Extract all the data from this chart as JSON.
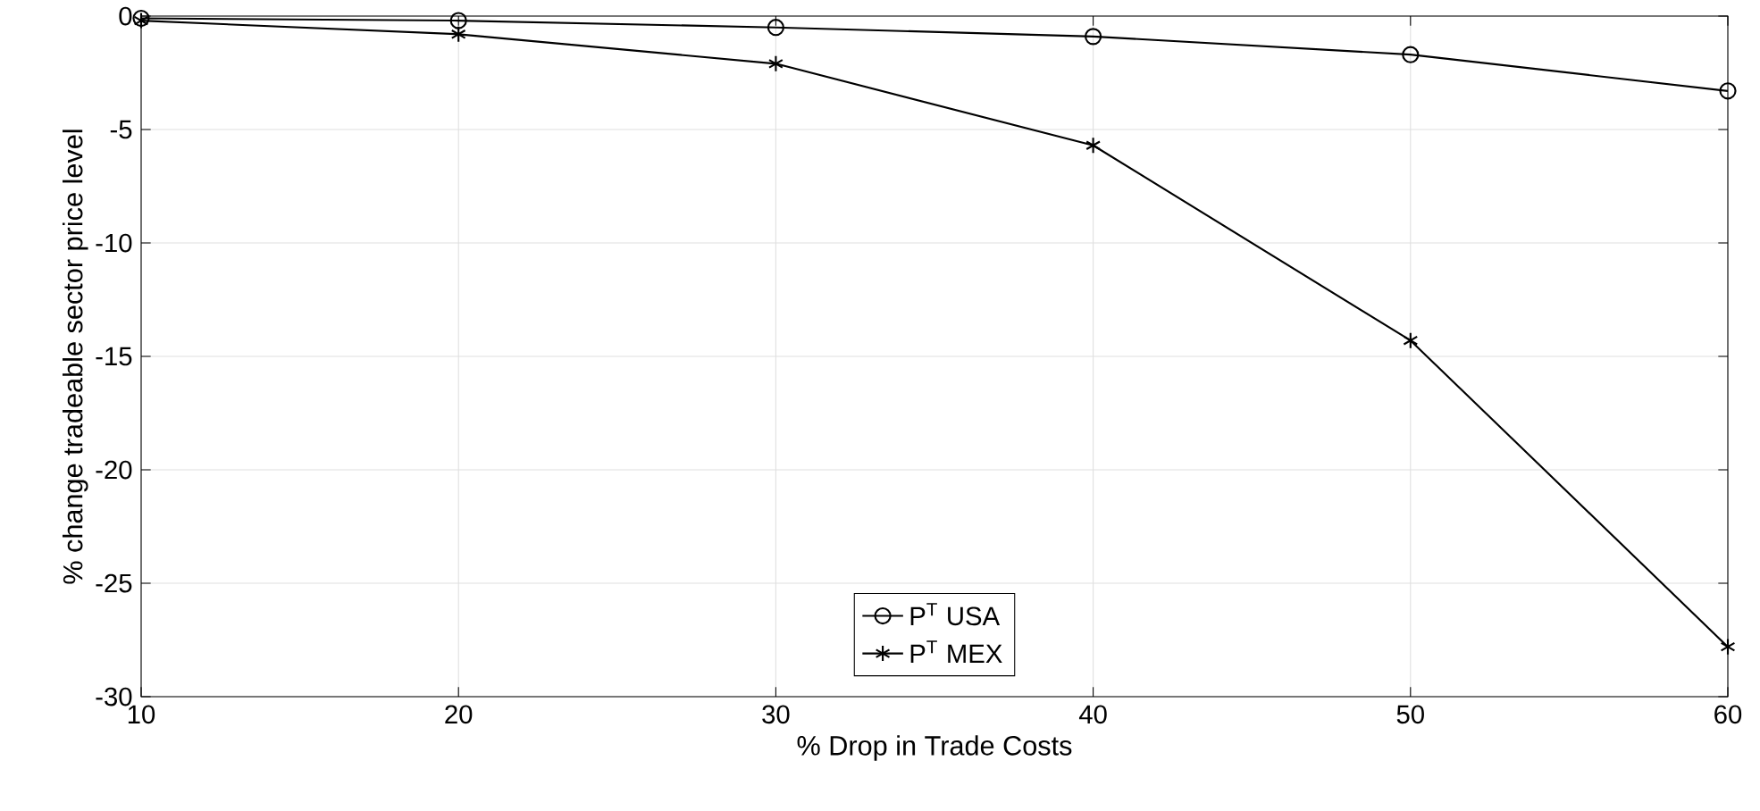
{
  "chart_data": {
    "type": "line",
    "xlabel": "% Drop in Trade Costs",
    "ylabel": "% change tradeable sector price level",
    "x": [
      10,
      20,
      30,
      40,
      50,
      60
    ],
    "series": [
      {
        "name": "P$^{T}$ USA",
        "color": "#000000",
        "marker": "circle",
        "values": [
          -0.1,
          -0.2,
          -0.5,
          -0.9,
          -1.7,
          -3.3
        ]
      },
      {
        "name": "P$^{T}$ MEX",
        "color": "#000000",
        "marker": "cross",
        "values": [
          -0.2,
          -0.8,
          -2.1,
          -5.7,
          -14.3,
          -27.8
        ]
      }
    ],
    "xlim": [
      10,
      60
    ],
    "xticks": [
      10,
      20,
      30,
      40,
      50,
      60
    ],
    "ylim": [
      -30,
      0
    ],
    "yticks": [
      -30,
      -25,
      -20,
      -15,
      -10,
      -5,
      0
    ],
    "grid": true,
    "legend": "bottom",
    "line_style": "solid"
  }
}
